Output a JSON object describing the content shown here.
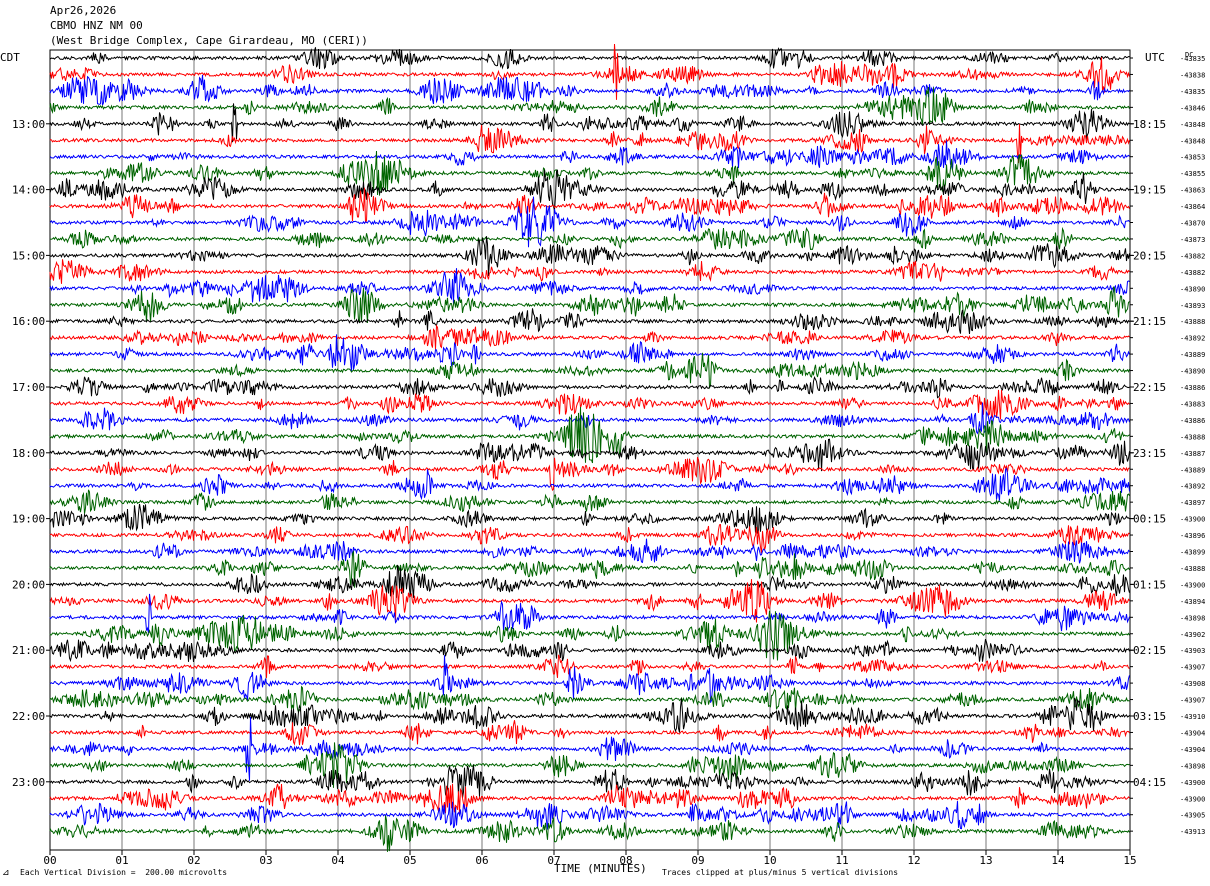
{
  "header": {
    "date": "Apr26,2026",
    "station": "CBMO HNZ NM 00",
    "location": "(West Bridge Complex, Cape Girardeau, MO (CERI))"
  },
  "footer": {
    "mark": "⊿",
    "scale_note": "Each Vertical Division =  200.00 microvolts",
    "clip_note": "Traces clipped at plus/minus 5 vertical divisions"
  },
  "chart_data": {
    "type": "line",
    "subtype": "helicorder",
    "xlabel": "TIME (MINUTES)",
    "xlim": [
      0,
      15
    ],
    "x_ticks": [
      "00",
      "01",
      "02",
      "03",
      "04",
      "05",
      "06",
      "07",
      "08",
      "09",
      "10",
      "11",
      "12",
      "13",
      "14",
      "15"
    ],
    "left_axis_title": "CDT",
    "right_axis_title": "UTC",
    "dc_title": "DC",
    "rows_per_hour": 4,
    "trace_colors": [
      "#000000",
      "#ff0000",
      "#0000ff",
      "#006400"
    ],
    "left_time_labels": [
      {
        "row": 4,
        "label": "13:00"
      },
      {
        "row": 8,
        "label": "14:00"
      },
      {
        "row": 12,
        "label": "15:00"
      },
      {
        "row": 16,
        "label": "16:00"
      },
      {
        "row": 20,
        "label": "17:00"
      },
      {
        "row": 24,
        "label": "18:00"
      },
      {
        "row": 28,
        "label": "19:00"
      },
      {
        "row": 32,
        "label": "20:00"
      },
      {
        "row": 36,
        "label": "21:00"
      },
      {
        "row": 40,
        "label": "22:00"
      },
      {
        "row": 44,
        "label": "23:00"
      }
    ],
    "right_time_labels": [
      {
        "row": 4,
        "label": "18:15"
      },
      {
        "row": 8,
        "label": "19:15"
      },
      {
        "row": 12,
        "label": "20:15"
      },
      {
        "row": 16,
        "label": "21:15"
      },
      {
        "row": 20,
        "label": "22:15"
      },
      {
        "row": 24,
        "label": "23:15"
      },
      {
        "row": 28,
        "label": "00:15"
      },
      {
        "row": 32,
        "label": "01:15"
      },
      {
        "row": 36,
        "label": "02:15"
      },
      {
        "row": 40,
        "label": "03:15"
      },
      {
        "row": 44,
        "label": "04:15"
      }
    ],
    "dc_offsets": [
      "-43835",
      "-43838",
      "-43835",
      "-43846",
      "-43848",
      "-43848",
      "-43853",
      "-43855",
      "-43863",
      "-43864",
      "-43870",
      "-43873",
      "-43882",
      "-43882",
      "-43890",
      "-43893",
      "-43888",
      "-43892",
      "-43889",
      "-43890",
      "-43886",
      "-43883",
      "-43886",
      "-43888",
      "-43887",
      "-43889",
      "-43892",
      "-43897",
      "-43900",
      "-43896",
      "-43899",
      "-43888",
      "-43900",
      "-43894",
      "-43898",
      "-43902",
      "-43903",
      "-43907",
      "-43908",
      "-43907",
      "-43910",
      "-43904",
      "-43904",
      "-43898",
      "-43900",
      "-43900",
      "-43905",
      "-43913"
    ],
    "clip_divisions": 5,
    "division_microvolts": 200.0
  }
}
